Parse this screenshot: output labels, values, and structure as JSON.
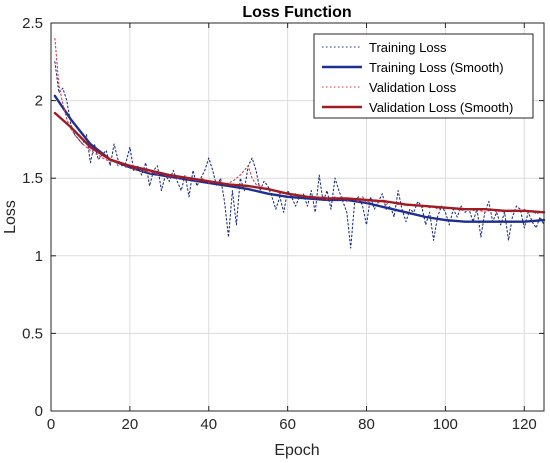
{
  "chart_data": {
    "type": "line",
    "title": "Loss Function",
    "xlabel": "Epoch",
    "ylabel": "Loss",
    "xlim": [
      0,
      125
    ],
    "ylim": [
      0,
      2.5
    ],
    "x_ticks": [
      0,
      20,
      40,
      60,
      80,
      100,
      120
    ],
    "y_ticks": [
      0,
      0.5,
      1,
      1.5,
      2,
      2.5
    ],
    "y_tick_labels": [
      "0",
      "0.5",
      "1",
      "1.5",
      "2",
      "2.5"
    ],
    "grid": true,
    "legend_position": "top-right",
    "series": [
      {
        "name": "Training Loss",
        "color": "#1f2f8f",
        "style": "dotted",
        "x": [
          1,
          2,
          3,
          4,
          5,
          6,
          7,
          8,
          9,
          10,
          11,
          12,
          13,
          14,
          15,
          16,
          17,
          18,
          19,
          20,
          21,
          22,
          23,
          24,
          25,
          26,
          27,
          28,
          29,
          30,
          31,
          32,
          33,
          34,
          35,
          36,
          37,
          38,
          39,
          40,
          41,
          42,
          43,
          44,
          45,
          46,
          47,
          48,
          49,
          50,
          51,
          52,
          53,
          54,
          55,
          56,
          57,
          58,
          59,
          60,
          61,
          62,
          63,
          64,
          65,
          66,
          67,
          68,
          69,
          70,
          71,
          72,
          73,
          74,
          75,
          76,
          77,
          78,
          79,
          80,
          81,
          82,
          83,
          84,
          85,
          86,
          87,
          88,
          89,
          90,
          91,
          92,
          93,
          94,
          95,
          96,
          97,
          98,
          99,
          100,
          101,
          102,
          103,
          104,
          105,
          106,
          107,
          108,
          109,
          110,
          111,
          112,
          113,
          114,
          115,
          116,
          117,
          118,
          119,
          120,
          121,
          122,
          123,
          124,
          125
        ],
        "values": [
          2.25,
          2.05,
          2.08,
          2.0,
          1.85,
          1.78,
          1.75,
          1.72,
          1.78,
          1.6,
          1.72,
          1.62,
          1.65,
          1.68,
          1.58,
          1.72,
          1.62,
          1.58,
          1.6,
          1.7,
          1.55,
          1.58,
          1.52,
          1.6,
          1.45,
          1.55,
          1.58,
          1.42,
          1.52,
          1.48,
          1.55,
          1.48,
          1.42,
          1.52,
          1.38,
          1.55,
          1.45,
          1.5,
          1.55,
          1.63,
          1.55,
          1.45,
          1.5,
          1.35,
          1.12,
          1.42,
          1.2,
          1.5,
          1.42,
          1.58,
          1.63,
          1.55,
          1.42,
          1.48,
          1.45,
          1.38,
          1.3,
          1.38,
          1.28,
          1.42,
          1.38,
          1.32,
          1.38,
          1.4,
          1.32,
          1.42,
          1.28,
          1.52,
          1.35,
          1.42,
          1.3,
          1.5,
          1.42,
          1.35,
          1.28,
          1.05,
          1.35,
          1.38,
          1.32,
          1.2,
          1.38,
          1.3,
          1.35,
          1.4,
          1.3,
          1.32,
          1.25,
          1.42,
          1.3,
          1.22,
          1.3,
          1.28,
          1.35,
          1.32,
          1.2,
          1.28,
          1.1,
          1.25,
          1.32,
          1.28,
          1.2,
          1.3,
          1.25,
          1.32,
          1.28,
          1.3,
          1.22,
          1.3,
          1.12,
          1.28,
          1.35,
          1.22,
          1.28,
          1.2,
          1.28,
          1.1,
          1.25,
          1.32,
          1.3,
          1.18,
          1.28,
          1.22,
          1.18,
          1.25,
          1.2
        ]
      },
      {
        "name": "Training Loss (Smooth)",
        "color": "#1f2f8f",
        "style": "solid",
        "x": [
          1,
          5,
          10,
          15,
          20,
          25,
          30,
          35,
          40,
          45,
          50,
          55,
          60,
          65,
          70,
          75,
          80,
          85,
          90,
          95,
          100,
          105,
          110,
          115,
          120,
          125
        ],
        "values": [
          2.03,
          1.88,
          1.72,
          1.62,
          1.57,
          1.53,
          1.51,
          1.49,
          1.47,
          1.45,
          1.43,
          1.4,
          1.38,
          1.37,
          1.36,
          1.36,
          1.34,
          1.31,
          1.28,
          1.25,
          1.23,
          1.22,
          1.22,
          1.22,
          1.22,
          1.23
        ]
      },
      {
        "name": "Validation Loss",
        "color": "#d93a4a",
        "style": "dotted",
        "x": [
          1,
          2,
          3,
          4,
          5,
          6,
          7,
          8,
          9,
          10,
          11,
          12,
          13,
          14,
          15,
          16,
          17,
          18,
          19,
          20,
          21,
          22,
          23,
          24,
          25,
          26,
          27,
          28,
          29,
          30,
          31,
          32,
          33,
          34,
          35,
          36,
          37,
          38,
          39,
          40,
          41,
          42,
          43,
          44,
          45,
          46,
          47,
          48,
          49,
          50,
          51,
          52,
          53,
          54,
          55,
          56,
          57,
          58,
          59,
          60,
          61,
          62,
          63,
          64,
          65,
          66,
          67,
          68,
          69,
          70,
          71,
          72,
          73,
          74,
          75,
          76,
          77,
          78,
          79,
          80,
          81,
          82,
          83,
          84,
          85,
          86,
          87,
          88,
          89,
          90,
          91,
          92,
          93,
          94,
          95,
          96,
          97,
          98,
          99,
          100,
          101,
          102,
          103,
          104,
          105,
          106,
          107,
          108,
          109,
          110,
          111,
          112,
          113,
          114,
          115,
          116,
          117,
          118,
          119,
          120,
          121,
          122,
          123,
          124,
          125
        ],
        "values": [
          2.4,
          2.1,
          1.98,
          1.88,
          1.82,
          1.78,
          1.75,
          1.72,
          1.7,
          1.68,
          1.66,
          1.65,
          1.63,
          1.62,
          1.6,
          1.62,
          1.58,
          1.6,
          1.57,
          1.58,
          1.55,
          1.57,
          1.54,
          1.55,
          1.53,
          1.54,
          1.52,
          1.53,
          1.52,
          1.5,
          1.52,
          1.5,
          1.51,
          1.5,
          1.49,
          1.5,
          1.48,
          1.5,
          1.49,
          1.47,
          1.48,
          1.47,
          1.48,
          1.46,
          1.47,
          1.48,
          1.5,
          1.52,
          1.55,
          1.58,
          1.5,
          1.46,
          1.45,
          1.43,
          1.44,
          1.42,
          1.42,
          1.4,
          1.41,
          1.4,
          1.39,
          1.4,
          1.38,
          1.39,
          1.38,
          1.37,
          1.38,
          1.37,
          1.38,
          1.36,
          1.37,
          1.38,
          1.37,
          1.38,
          1.35,
          1.37,
          1.36,
          1.35,
          1.38,
          1.34,
          1.36,
          1.35,
          1.34,
          1.36,
          1.33,
          1.35,
          1.34,
          1.33,
          1.34,
          1.32,
          1.33,
          1.32,
          1.33,
          1.31,
          1.32,
          1.31,
          1.32,
          1.3,
          1.31,
          1.3,
          1.31,
          1.3,
          1.3,
          1.29,
          1.3,
          1.3,
          1.29,
          1.3,
          1.29,
          1.28,
          1.29,
          1.3,
          1.28,
          1.29,
          1.28,
          1.29,
          1.28,
          1.29,
          1.28,
          1.3,
          1.28,
          1.29,
          1.27,
          1.28,
          1.28
        ]
      },
      {
        "name": "Validation Loss (Smooth)",
        "color": "#a01c24",
        "style": "solid",
        "x": [
          1,
          5,
          10,
          15,
          20,
          25,
          30,
          35,
          40,
          45,
          50,
          55,
          60,
          65,
          70,
          75,
          80,
          85,
          90,
          95,
          100,
          105,
          110,
          115,
          120,
          125
        ],
        "values": [
          1.92,
          1.83,
          1.7,
          1.62,
          1.58,
          1.55,
          1.52,
          1.5,
          1.48,
          1.46,
          1.45,
          1.43,
          1.4,
          1.38,
          1.37,
          1.37,
          1.36,
          1.35,
          1.33,
          1.32,
          1.31,
          1.3,
          1.3,
          1.29,
          1.29,
          1.28
        ]
      }
    ]
  }
}
